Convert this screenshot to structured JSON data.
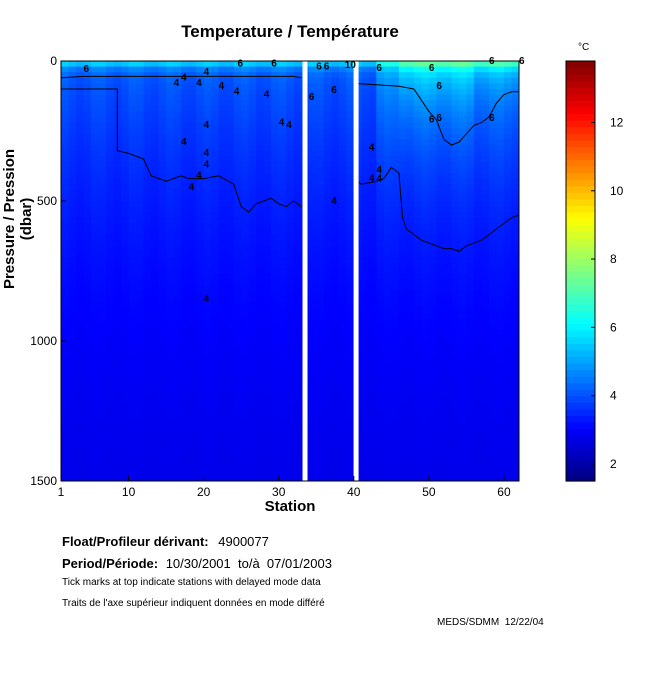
{
  "chart_data": {
    "type": "heatmap",
    "title": "Temperature / Température",
    "xlabel": "Station",
    "ylabel": "Pressure / Pression (dbar)",
    "xlim": [
      1,
      62
    ],
    "ylim": [
      0,
      1500
    ],
    "x_ticks": [
      1,
      10,
      20,
      30,
      40,
      50,
      60
    ],
    "y_ticks": [
      0,
      500,
      1000,
      1500
    ],
    "colorbar": {
      "unit": "°C",
      "range": [
        1.5,
        13.8
      ],
      "ticks": [
        2,
        4,
        6,
        8,
        10,
        12
      ],
      "colormap": "jet"
    },
    "data_gaps_stations": [
      33.5,
      40.3
    ],
    "contour_levels": [
      4,
      6,
      10
    ],
    "contour_labels": [
      {
        "text": "6",
        "x": 4,
        "y": 40
      },
      {
        "text": "4",
        "x": 16,
        "y": 90
      },
      {
        "text": "4",
        "x": 17,
        "y": 70
      },
      {
        "text": "4",
        "x": 19,
        "y": 90
      },
      {
        "text": "4",
        "x": 20,
        "y": 50
      },
      {
        "text": "4",
        "x": 22,
        "y": 100
      },
      {
        "text": "4",
        "x": 24,
        "y": 120
      },
      {
        "text": "6",
        "x": 24.5,
        "y": 20
      },
      {
        "text": "4",
        "x": 28,
        "y": 130
      },
      {
        "text": "6",
        "x": 29,
        "y": 20
      },
      {
        "text": "4",
        "x": 20,
        "y": 240
      },
      {
        "text": "4",
        "x": 30,
        "y": 230
      },
      {
        "text": "4",
        "x": 31,
        "y": 240
      },
      {
        "text": "4",
        "x": 17,
        "y": 300
      },
      {
        "text": "4",
        "x": 20,
        "y": 340
      },
      {
        "text": "4",
        "x": 20,
        "y": 380
      },
      {
        "text": "4",
        "x": 19,
        "y": 420
      },
      {
        "text": "4",
        "x": 18,
        "y": 460
      },
      {
        "text": "4",
        "x": 20,
        "y": 860
      },
      {
        "text": "6",
        "x": 35,
        "y": 30
      },
      {
        "text": "6",
        "x": 36,
        "y": 30
      },
      {
        "text": "6",
        "x": 34,
        "y": 140
      },
      {
        "text": "6",
        "x": 37,
        "y": 115
      },
      {
        "text": "10",
        "x": 38.8,
        "y": 25
      },
      {
        "text": "4",
        "x": 37,
        "y": 510
      },
      {
        "text": "4",
        "x": 42,
        "y": 320
      },
      {
        "text": "4",
        "x": 43,
        "y": 400
      },
      {
        "text": "4",
        "x": 42,
        "y": 430
      },
      {
        "text": "4",
        "x": 43,
        "y": 430
      },
      {
        "text": "6",
        "x": 43,
        "y": 35
      },
      {
        "text": "6",
        "x": 50,
        "y": 35
      },
      {
        "text": "6",
        "x": 51,
        "y": 100
      },
      {
        "text": "6",
        "x": 50,
        "y": 220
      },
      {
        "text": "6",
        "x": 51,
        "y": 215
      },
      {
        "text": "6",
        "x": 58,
        "y": 215
      },
      {
        "text": "6",
        "x": 58,
        "y": 10
      },
      {
        "text": "6",
        "x": 62,
        "y": 10
      }
    ]
  },
  "info": {
    "float_label": "Float/Profileur dérivant:",
    "float_value": "4900077",
    "period_label": "Period/Période:",
    "period_value": "10/30/2001  to/à  07/01/2003",
    "note_en": "Tick marks at top indicate stations with delayed mode data",
    "note_fr": "Traits de l'axe supérieur indiquent données en mode différé",
    "credit": "MEDS/SDMM  12/22/04"
  }
}
